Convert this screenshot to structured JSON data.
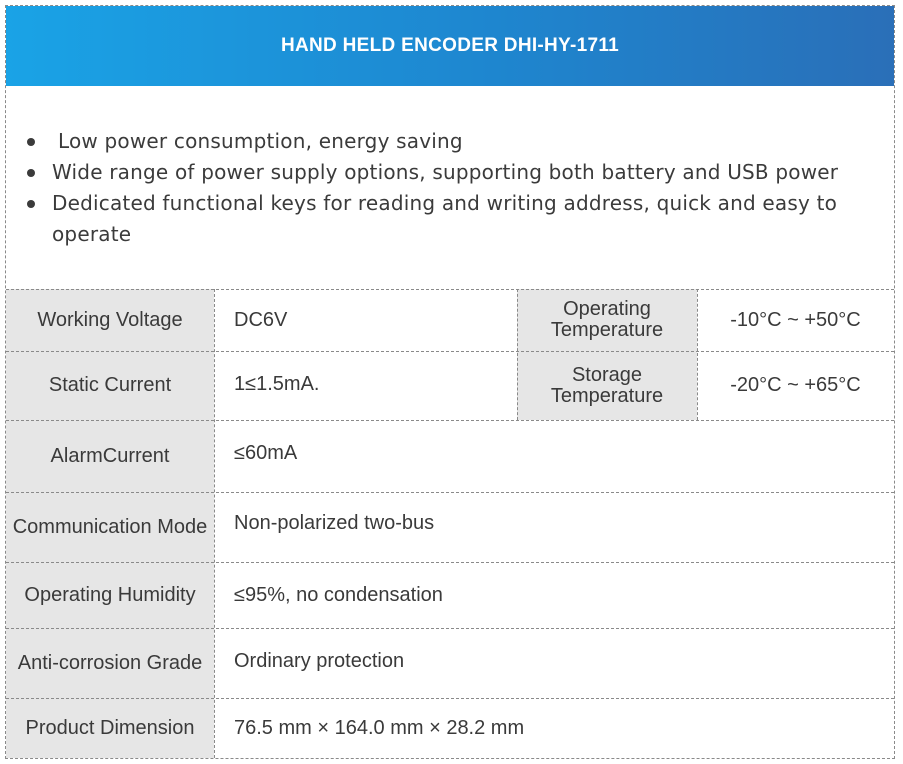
{
  "header": {
    "title": "HAND HELD ENCODER DHI-HY-1711"
  },
  "features": [
    {
      "text": "Low power consumption, energy saving"
    },
    {
      "text": "Wide range of power supply options, supporting both battery and USB power"
    },
    {
      "text": "Dedicated functional keys for reading and writing address, quick and easy to operate"
    }
  ],
  "specs": {
    "working_voltage": {
      "label": "Working Voltage",
      "value": "DC6V"
    },
    "operating_temperature": {
      "label": "Operating Temperature",
      "value": "-10°C ~ +50°C"
    },
    "static_current": {
      "label": "Static Current",
      "value": "1≤1.5mA."
    },
    "storage_temperature": {
      "label": "Storage Temperature",
      "value": "-20°C ~ +65°C"
    },
    "alarm_current": {
      "label": "AlarmCurrent",
      "value": "≤60mA"
    },
    "communication_mode": {
      "label": "Communication Mode",
      "value": "Non-polarized two-bus"
    },
    "operating_humidity": {
      "label": "Operating Humidity",
      "value": "≤95%, no condensation"
    },
    "anti_corrosion_grade": {
      "label": "Anti-corrosion Grade",
      "value": "Ordinary protection"
    },
    "product_dimension": {
      "label": "Product Dimension",
      "value": "76.5 mm × 164.0 mm × 28.2 mm"
    }
  },
  "colors": {
    "header_start": "#1aa3e6",
    "header_end": "#2a6fb8",
    "label_bg": "#e6e6e6"
  }
}
